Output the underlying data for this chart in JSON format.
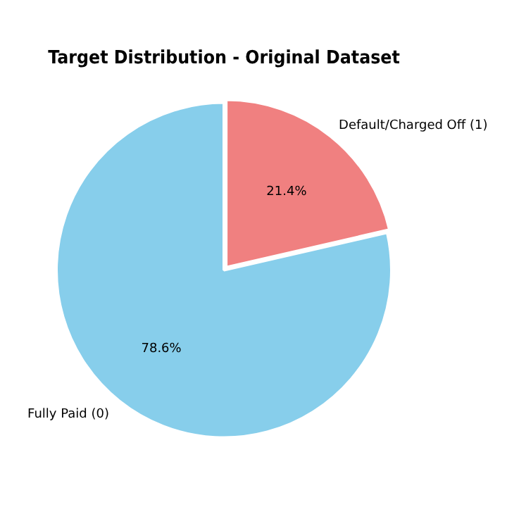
{
  "chart_data": {
    "type": "pie",
    "title": "Target Distribution - Original Dataset",
    "categories": [
      "Fully Paid (0)",
      "Default/Charged Off (1)"
    ],
    "values": [
      78.6,
      21.4
    ],
    "colors": [
      "#87ceeb",
      "#f08080"
    ],
    "value_labels": [
      "78.6%",
      "21.4%"
    ],
    "legend": false
  }
}
